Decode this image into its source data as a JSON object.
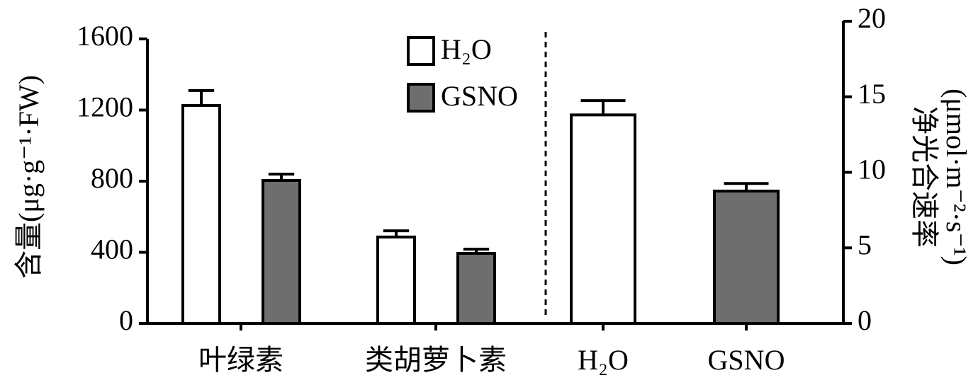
{
  "chart_data": [
    {
      "type": "bar",
      "ylabel": "含量(μg·g⁻¹·FW)",
      "categories": [
        "叶绿素",
        "类胡萝卜素"
      ],
      "series": [
        {
          "name": "H₂O",
          "color": "#ffffff",
          "values": [
            1226,
            486
          ],
          "errors": [
            84,
            35
          ]
        },
        {
          "name": "GSNO",
          "color": "#6e6e6e",
          "values": [
            804,
            394
          ],
          "errors": [
            36,
            24
          ]
        }
      ],
      "ylim": [
        0,
        1600
      ],
      "yticks": [
        0,
        400,
        800,
        1200,
        1600
      ]
    },
    {
      "type": "bar",
      "ylabel": [
        "净光合速率",
        "(μmol·m⁻²·s⁻¹)"
      ],
      "categories": [
        "H₂O",
        "GSNO"
      ],
      "values": [
        13.8,
        8.76
      ],
      "errors": [
        0.95,
        0.5
      ],
      "colors": [
        "#ffffff",
        "#6e6e6e"
      ],
      "ylim": [
        0,
        20
      ],
      "yticks": [
        0,
        5,
        10,
        15,
        20
      ]
    }
  ]
}
